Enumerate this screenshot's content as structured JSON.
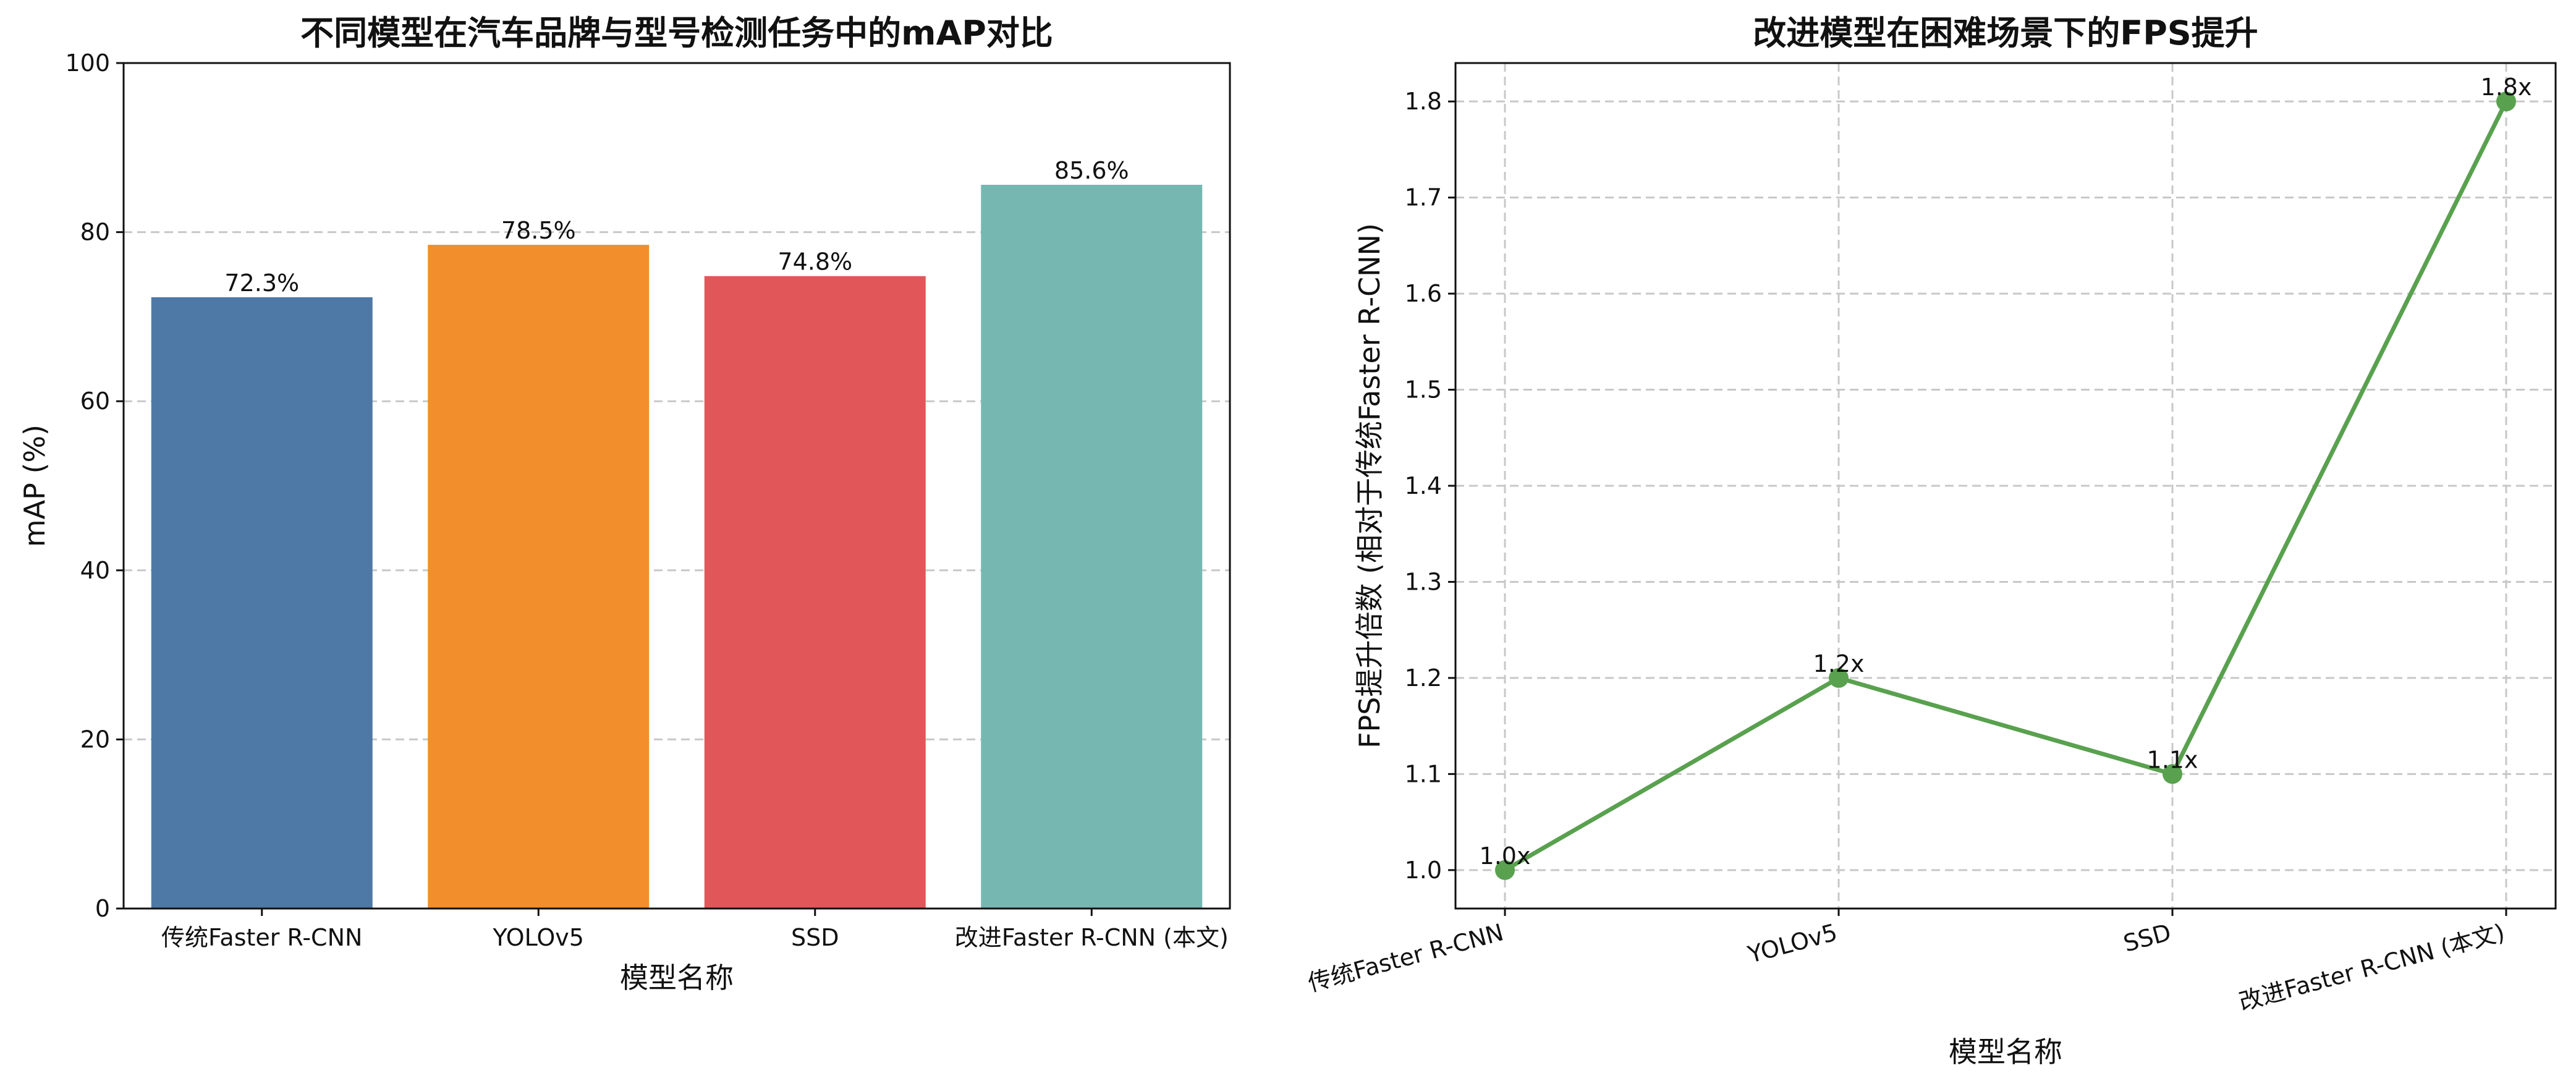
{
  "chart_data": [
    {
      "type": "bar",
      "title": "不同模型在汽车品牌与型号检测任务中的mAP对比",
      "xlabel": "模型名称",
      "ylabel": "mAP (%)",
      "categories": [
        "传统Faster R-CNN",
        "YOLOv5",
        "SSD",
        "改进Faster R-CNN (本文)"
      ],
      "values": [
        72.3,
        78.5,
        74.8,
        85.6
      ],
      "value_labels": [
        "72.3%",
        "78.5%",
        "74.8%",
        "85.6%"
      ],
      "colors": [
        "#4e79a7",
        "#f28e2b",
        "#e15759",
        "#76b7b2"
      ],
      "ylim": [
        0,
        100
      ],
      "yticks": [
        0,
        20,
        40,
        60,
        80,
        100
      ],
      "ytick_labels": [
        "0",
        "20",
        "40",
        "60",
        "80",
        "100"
      ],
      "grid": "y-dashed"
    },
    {
      "type": "line",
      "title": "改进模型在困难场景下的FPS提升",
      "xlabel": "模型名称",
      "ylabel": "FPS提升倍数 (相对于传统Faster R-CNN)",
      "categories": [
        "传统Faster R-CNN",
        "YOLOv5",
        "SSD",
        "改进Faster R-CNN (本文)"
      ],
      "values": [
        1.0,
        1.2,
        1.1,
        1.8
      ],
      "value_labels": [
        "1.0x",
        "1.2x",
        "1.1x",
        "1.8x"
      ],
      "color": "#59a14f",
      "ylim": [
        0.96,
        1.84
      ],
      "yticks": [
        1.0,
        1.1,
        1.2,
        1.3,
        1.4,
        1.5,
        1.6,
        1.7,
        1.8
      ],
      "ytick_labels": [
        "1.0",
        "1.1",
        "1.2",
        "1.3",
        "1.4",
        "1.5",
        "1.6",
        "1.7",
        "1.8"
      ],
      "xtick_rotation_deg": 15,
      "grid": "both-dashed"
    }
  ]
}
